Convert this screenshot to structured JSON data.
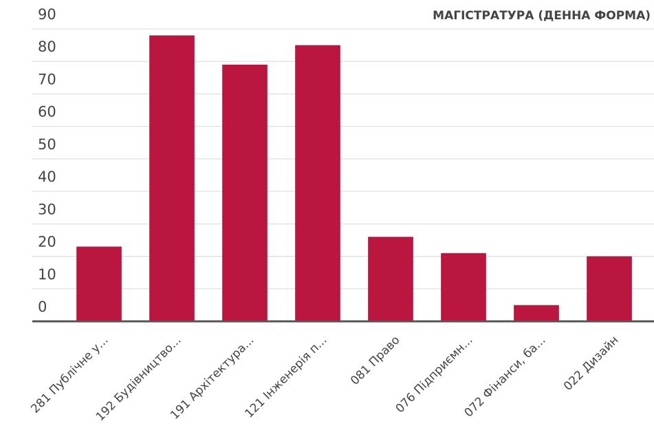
{
  "chart_data": {
    "type": "bar",
    "title": "МАГІСТРАТУРА (ДЕННА ФОРМА)",
    "categories": [
      "281 Публічне у...",
      "192 Будівництво...",
      "191 Архітектура...",
      "121 Інженерія п...",
      "081 Право",
      "076 Підприємн...",
      "072 Фінанси, ба...",
      "022 Дизайн"
    ],
    "values": [
      23,
      88,
      79,
      85,
      26,
      21,
      5,
      20
    ],
    "color": "#bb163f",
    "ylim": [
      0,
      90
    ],
    "yticks": [
      0,
      10,
      20,
      30,
      40,
      50,
      60,
      70,
      80,
      90
    ],
    "grid": true
  }
}
